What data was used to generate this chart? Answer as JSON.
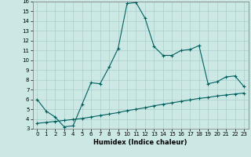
{
  "title": "",
  "xlabel": "Humidex (Indice chaleur)",
  "ylabel": "",
  "bg_color": "#cce8e4",
  "line_color": "#006060",
  "grid_color": "#aacfcb",
  "x_line1": [
    0,
    1,
    2,
    3,
    4,
    5,
    6,
    7,
    8,
    9,
    10,
    11,
    12,
    13,
    14,
    15,
    16,
    17,
    18,
    19,
    20,
    21,
    22,
    23
  ],
  "y_line1": [
    6.0,
    4.8,
    4.2,
    3.2,
    3.3,
    5.5,
    7.7,
    7.6,
    9.3,
    11.2,
    15.8,
    15.9,
    14.3,
    11.4,
    10.5,
    10.5,
    11.0,
    11.1,
    11.5,
    7.6,
    7.8,
    8.3,
    8.4,
    7.3
  ],
  "x_line2": [
    0,
    1,
    2,
    3,
    4,
    5,
    6,
    7,
    8,
    9,
    10,
    11,
    12,
    13,
    14,
    15,
    16,
    17,
    18,
    19,
    20,
    21,
    22,
    23
  ],
  "y_line2": [
    3.55,
    3.65,
    3.75,
    3.85,
    3.95,
    4.05,
    4.2,
    4.35,
    4.5,
    4.65,
    4.85,
    5.0,
    5.15,
    5.35,
    5.5,
    5.65,
    5.8,
    5.95,
    6.1,
    6.2,
    6.35,
    6.45,
    6.55,
    6.65
  ],
  "xlim": [
    -0.5,
    23.5
  ],
  "ylim": [
    3,
    16
  ],
  "yticks": [
    3,
    4,
    5,
    6,
    7,
    8,
    9,
    10,
    11,
    12,
    13,
    14,
    15,
    16
  ],
  "xticks": [
    0,
    1,
    2,
    3,
    4,
    5,
    6,
    7,
    8,
    9,
    10,
    11,
    12,
    13,
    14,
    15,
    16,
    17,
    18,
    19,
    20,
    21,
    22,
    23
  ]
}
